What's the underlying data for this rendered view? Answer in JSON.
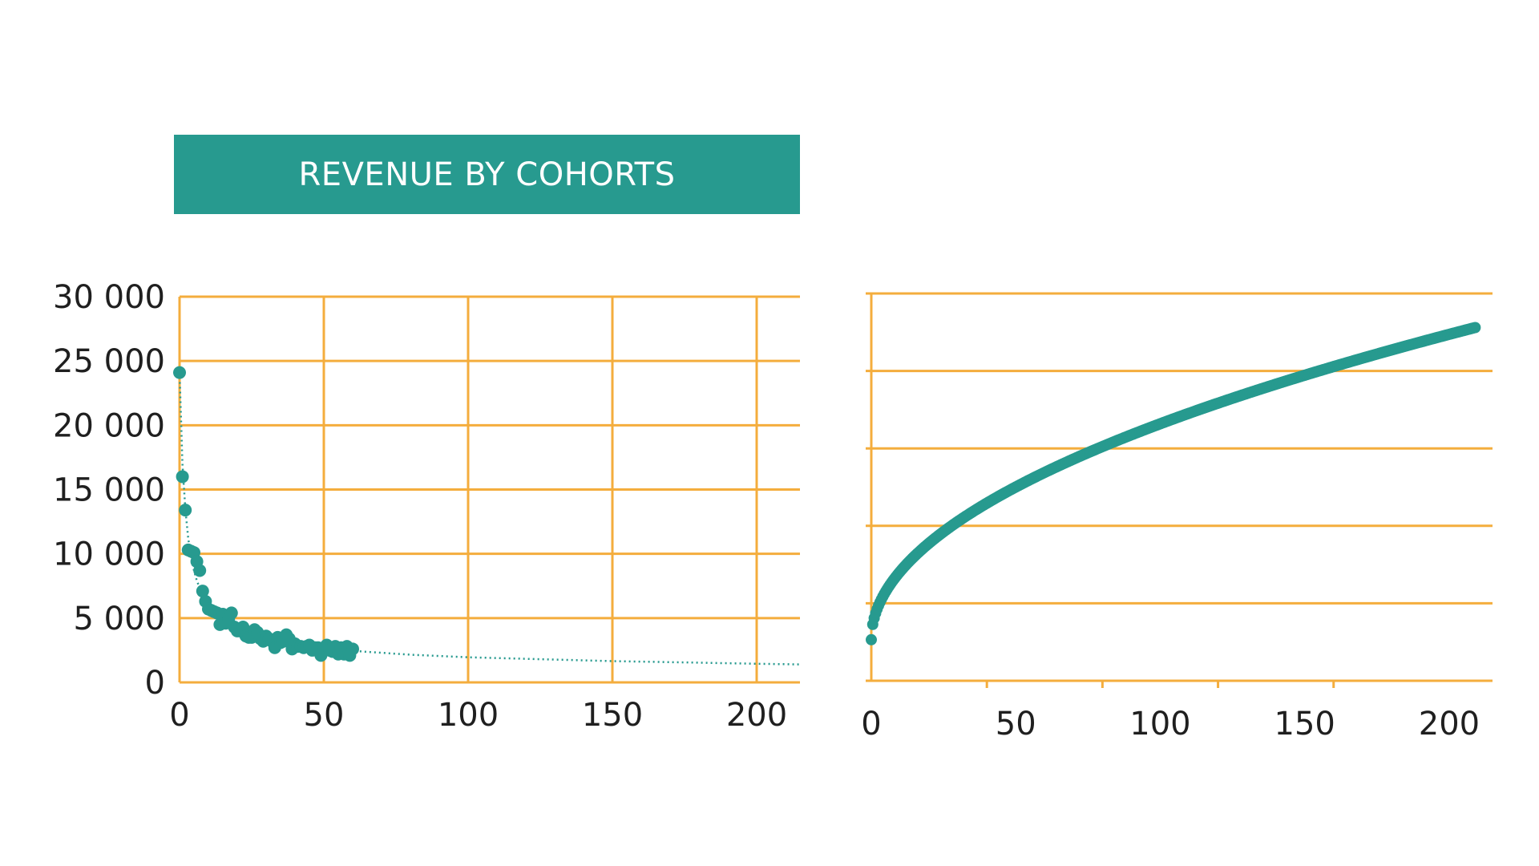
{
  "colors": {
    "accent": "#279a8f",
    "grid": "#f4ad3d",
    "text": "#1f1f1f",
    "background": "#ffffff"
  },
  "banner": {
    "title": "REVENUE BY COHORTS"
  },
  "chart_data": [
    {
      "type": "scatter",
      "title": "",
      "xlabel": "",
      "ylabel": "",
      "xlim": [
        0,
        215
      ],
      "ylim": [
        0,
        30000
      ],
      "grid": true,
      "x_ticks": [
        0,
        50,
        100,
        150,
        200
      ],
      "x_tick_labels": [
        "0",
        "50",
        "100",
        "150",
        "200"
      ],
      "y_ticks": [
        0,
        5000,
        10000,
        15000,
        20000,
        25000,
        30000
      ],
      "y_tick_labels": [
        "0",
        "5 000",
        "10 000",
        "15 000",
        "20 000",
        "25 000",
        "30 000"
      ],
      "series": [
        {
          "type": "scatter",
          "x": [
            0,
            1,
            2,
            3,
            4,
            5,
            6,
            7,
            8,
            9,
            10,
            11,
            12,
            13,
            14,
            15,
            16,
            17,
            18,
            19,
            20,
            21,
            22,
            23,
            24,
            25,
            26,
            27,
            28,
            29,
            30,
            31,
            32,
            33,
            34,
            35,
            36,
            37,
            38,
            39,
            40,
            41,
            42,
            43,
            44,
            45,
            46,
            47,
            48,
            49,
            50,
            51,
            52,
            53,
            54,
            55,
            56,
            57,
            58,
            59,
            60
          ],
          "y": [
            24100,
            16000,
            13400,
            10300,
            10200,
            10100,
            9400,
            8700,
            7100,
            6300,
            5700,
            5600,
            5500,
            5400,
            4500,
            5300,
            4600,
            4900,
            5400,
            4300,
            4000,
            4000,
            4300,
            3600,
            3500,
            3500,
            4100,
            3900,
            3400,
            3200,
            3600,
            3400,
            3200,
            2700,
            3500,
            3100,
            3200,
            3700,
            3400,
            2600,
            3000,
            2800,
            2800,
            2700,
            2800,
            2900,
            2500,
            2700,
            2700,
            2100,
            2700,
            2900,
            2500,
            2400,
            2800,
            2200,
            2700,
            2200,
            2800,
            2100,
            2600
          ]
        },
        {
          "type": "line",
          "style": "dotted",
          "x": [
            0,
            1,
            2,
            3,
            4,
            5,
            6,
            8,
            10,
            12,
            15,
            20,
            25,
            30,
            40,
            50,
            60,
            80,
            100,
            125,
            150,
            175,
            200,
            215
          ],
          "y": [
            24100,
            17000,
            13500,
            11200,
            9700,
            8700,
            7900,
            6800,
            6000,
            5500,
            4800,
            4200,
            3800,
            3400,
            3000,
            2700,
            2450,
            2150,
            1950,
            1800,
            1650,
            1550,
            1450,
            1400
          ]
        }
      ]
    },
    {
      "type": "scatter",
      "title": "",
      "xlabel": "",
      "ylabel": "",
      "xlim": [
        0,
        215
      ],
      "ylim": [
        0,
        5
      ],
      "grid": true,
      "y_tick_labels": [],
      "x_ticks": [
        0,
        50,
        100,
        150,
        200
      ],
      "x_tick_labels": [
        "0",
        "50",
        "100",
        "150",
        "200"
      ],
      "x_minor_ticks": [
        40,
        80,
        120,
        160
      ],
      "curve": {
        "x_start": 0,
        "x_end": 209,
        "y_start": 0.53,
        "y_end": 4.56
      }
    }
  ]
}
